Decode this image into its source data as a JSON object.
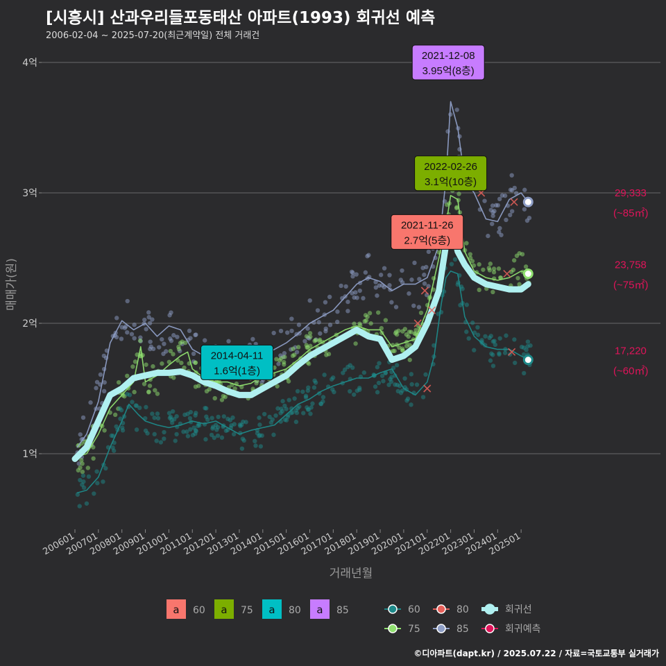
{
  "title": "[시흥시] 산과우리들포동태산 아파트(1993) 회귀선 예측",
  "subtitle": "2006-02-04 ~ 2025-07-20(최근계약일) 전체 거래건",
  "caption": "©디아파트(dapt.kr) / 2025.07.22 / 자료=국토교통부 실거래가",
  "colors": {
    "s60": "#1e8a8a",
    "s75": "#90e070",
    "s80": "#e8605a",
    "s85": "#8e9ec6",
    "regression": "#b0f0f0",
    "forecast": "#e0145a",
    "box60": "#f8766d",
    "box75": "#7cae00",
    "box80": "#00bfc4",
    "box85": "#c77cff"
  },
  "chart_data": {
    "type": "line",
    "title": "[시흥시] 산과우리들포동태산 아파트(1993) 회귀선 예측",
    "xlabel": "거래년월",
    "ylabel": "매매가(원)",
    "xlim": [
      2006.0,
      2026.0
    ],
    "ylim": [
      0.55,
      4.35
    ],
    "x_ticks": [
      {
        "x": 2006.0,
        "label": "200601"
      },
      {
        "x": 2007.0,
        "label": "200701"
      },
      {
        "x": 2008.0,
        "label": "200801"
      },
      {
        "x": 2009.0,
        "label": "200901"
      },
      {
        "x": 2010.0,
        "label": "201001"
      },
      {
        "x": 2011.0,
        "label": "201101"
      },
      {
        "x": 2012.0,
        "label": "201201"
      },
      {
        "x": 2013.0,
        "label": "201301"
      },
      {
        "x": 2014.0,
        "label": "201401"
      },
      {
        "x": 2015.0,
        "label": "201501"
      },
      {
        "x": 2016.0,
        "label": "201601"
      },
      {
        "x": 2017.0,
        "label": "201701"
      },
      {
        "x": 2018.0,
        "label": "201801"
      },
      {
        "x": 2019.0,
        "label": "201901"
      },
      {
        "x": 2020.0,
        "label": "202001"
      },
      {
        "x": 2021.0,
        "label": "202101"
      },
      {
        "x": 2022.0,
        "label": "202201"
      },
      {
        "x": 2023.0,
        "label": "202301"
      },
      {
        "x": 2024.0,
        "label": "202401"
      },
      {
        "x": 2025.0,
        "label": "202501"
      }
    ],
    "y_ticks": [
      {
        "y": 1,
        "label": "1억"
      },
      {
        "y": 2,
        "label": "2억"
      },
      {
        "y": 3,
        "label": "3억"
      },
      {
        "y": 4,
        "label": "4억"
      }
    ],
    "series": [
      {
        "name": "60",
        "color_key": "s60",
        "points": [
          [
            2006.1,
            0.7
          ],
          [
            2006.5,
            0.72
          ],
          [
            2007.0,
            0.82
          ],
          [
            2007.5,
            1.05
          ],
          [
            2008.0,
            1.25
          ],
          [
            2008.3,
            1.38
          ],
          [
            2008.7,
            1.3
          ],
          [
            2009.0,
            1.25
          ],
          [
            2009.5,
            1.22
          ],
          [
            2010.0,
            1.2
          ],
          [
            2010.5,
            1.22
          ],
          [
            2011.0,
            1.25
          ],
          [
            2011.5,
            1.23
          ],
          [
            2012.0,
            1.25
          ],
          [
            2012.5,
            1.2
          ],
          [
            2013.0,
            1.15
          ],
          [
            2013.5,
            1.18
          ],
          [
            2014.0,
            1.2
          ],
          [
            2014.5,
            1.22
          ],
          [
            2015.0,
            1.3
          ],
          [
            2015.5,
            1.38
          ],
          [
            2016.0,
            1.42
          ],
          [
            2016.5,
            1.48
          ],
          [
            2017.0,
            1.52
          ],
          [
            2017.5,
            1.55
          ],
          [
            2018.0,
            1.58
          ],
          [
            2018.5,
            1.58
          ],
          [
            2019.0,
            1.62
          ],
          [
            2019.5,
            1.65
          ],
          [
            2020.0,
            1.5
          ],
          [
            2020.5,
            1.45
          ],
          [
            2021.0,
            1.55
          ],
          [
            2021.3,
            1.75
          ],
          [
            2021.6,
            2.15
          ],
          [
            2021.8,
            2.35
          ],
          [
            2022.0,
            2.4
          ],
          [
            2022.3,
            2.38
          ],
          [
            2022.6,
            2.05
          ],
          [
            2023.0,
            1.9
          ],
          [
            2023.5,
            1.82
          ],
          [
            2024.0,
            1.8
          ],
          [
            2024.5,
            1.8
          ],
          [
            2025.0,
            1.75
          ],
          [
            2025.3,
            1.72
          ]
        ]
      },
      {
        "name": "75",
        "color_key": "s75",
        "points": [
          [
            2006.1,
            0.98
          ],
          [
            2006.5,
            1.0
          ],
          [
            2007.0,
            1.15
          ],
          [
            2007.5,
            1.35
          ],
          [
            2008.0,
            1.45
          ],
          [
            2008.5,
            1.55
          ],
          [
            2008.8,
            1.82
          ],
          [
            2009.0,
            1.55
          ],
          [
            2009.5,
            1.6
          ],
          [
            2010.0,
            1.68
          ],
          [
            2010.5,
            1.75
          ],
          [
            2010.8,
            1.78
          ],
          [
            2011.0,
            1.65
          ],
          [
            2011.5,
            1.58
          ],
          [
            2012.0,
            1.55
          ],
          [
            2012.5,
            1.55
          ],
          [
            2013.0,
            1.52
          ],
          [
            2013.5,
            1.54
          ],
          [
            2014.0,
            1.6
          ],
          [
            2014.5,
            1.62
          ],
          [
            2015.0,
            1.65
          ],
          [
            2015.5,
            1.72
          ],
          [
            2016.0,
            1.8
          ],
          [
            2016.5,
            1.85
          ],
          [
            2017.0,
            1.9
          ],
          [
            2017.5,
            1.95
          ],
          [
            2018.0,
            1.98
          ],
          [
            2018.5,
            1.95
          ],
          [
            2019.0,
            1.95
          ],
          [
            2019.5,
            1.82
          ],
          [
            2020.0,
            1.85
          ],
          [
            2020.5,
            1.88
          ],
          [
            2021.0,
            2.1
          ],
          [
            2021.5,
            2.5
          ],
          [
            2021.8,
            2.75
          ],
          [
            2022.0,
            2.98
          ],
          [
            2022.3,
            2.95
          ],
          [
            2022.6,
            2.55
          ],
          [
            2023.0,
            2.4
          ],
          [
            2023.5,
            2.35
          ],
          [
            2024.0,
            2.33
          ],
          [
            2024.5,
            2.35
          ],
          [
            2025.0,
            2.4
          ],
          [
            2025.3,
            2.38
          ]
        ]
      },
      {
        "name": "85",
        "color_key": "s85",
        "points": [
          [
            2006.1,
            1.05
          ],
          [
            2006.5,
            1.15
          ],
          [
            2007.0,
            1.4
          ],
          [
            2007.5,
            1.85
          ],
          [
            2008.0,
            2.02
          ],
          [
            2008.5,
            1.95
          ],
          [
            2009.0,
            2.0
          ],
          [
            2009.5,
            1.9
          ],
          [
            2010.0,
            1.98
          ],
          [
            2010.5,
            1.95
          ],
          [
            2011.0,
            1.8
          ],
          [
            2011.5,
            1.75
          ],
          [
            2012.0,
            1.72
          ],
          [
            2012.5,
            1.7
          ],
          [
            2013.0,
            1.68
          ],
          [
            2013.5,
            1.72
          ],
          [
            2014.0,
            1.75
          ],
          [
            2014.5,
            1.8
          ],
          [
            2015.0,
            1.85
          ],
          [
            2015.5,
            1.92
          ],
          [
            2016.0,
            2.0
          ],
          [
            2016.5,
            2.05
          ],
          [
            2017.0,
            2.1
          ],
          [
            2017.5,
            2.2
          ],
          [
            2018.0,
            2.3
          ],
          [
            2018.5,
            2.35
          ],
          [
            2019.0,
            2.32
          ],
          [
            2019.5,
            2.25
          ],
          [
            2020.0,
            2.3
          ],
          [
            2020.5,
            2.3
          ],
          [
            2021.0,
            2.35
          ],
          [
            2021.5,
            2.6
          ],
          [
            2021.8,
            3.1
          ],
          [
            2022.0,
            3.7
          ],
          [
            2022.3,
            3.5
          ],
          [
            2022.6,
            3.1
          ],
          [
            2023.0,
            3.0
          ],
          [
            2023.5,
            2.8
          ],
          [
            2024.0,
            2.78
          ],
          [
            2024.5,
            2.95
          ],
          [
            2025.0,
            3.0
          ],
          [
            2025.3,
            2.93
          ]
        ]
      },
      {
        "name": "회귀선",
        "color_key": "regression",
        "points": [
          [
            2006.0,
            0.96
          ],
          [
            2006.5,
            1.05
          ],
          [
            2007.0,
            1.25
          ],
          [
            2007.5,
            1.45
          ],
          [
            2008.0,
            1.5
          ],
          [
            2008.5,
            1.58
          ],
          [
            2009.0,
            1.6
          ],
          [
            2009.5,
            1.62
          ],
          [
            2010.0,
            1.62
          ],
          [
            2010.5,
            1.63
          ],
          [
            2011.0,
            1.6
          ],
          [
            2011.5,
            1.55
          ],
          [
            2012.0,
            1.52
          ],
          [
            2012.5,
            1.48
          ],
          [
            2013.0,
            1.45
          ],
          [
            2013.5,
            1.45
          ],
          [
            2014.0,
            1.5
          ],
          [
            2014.5,
            1.55
          ],
          [
            2015.0,
            1.6
          ],
          [
            2015.5,
            1.68
          ],
          [
            2016.0,
            1.75
          ],
          [
            2016.5,
            1.8
          ],
          [
            2017.0,
            1.85
          ],
          [
            2017.5,
            1.9
          ],
          [
            2018.0,
            1.95
          ],
          [
            2018.5,
            1.9
          ],
          [
            2019.0,
            1.88
          ],
          [
            2019.5,
            1.72
          ],
          [
            2020.0,
            1.75
          ],
          [
            2020.5,
            1.82
          ],
          [
            2021.0,
            2.0
          ],
          [
            2021.5,
            2.25
          ],
          [
            2021.8,
            2.6
          ],
          [
            2022.0,
            2.78
          ],
          [
            2022.3,
            2.55
          ],
          [
            2022.6,
            2.45
          ],
          [
            2023.0,
            2.35
          ],
          [
            2023.5,
            2.3
          ],
          [
            2024.0,
            2.28
          ],
          [
            2024.5,
            2.26
          ],
          [
            2025.0,
            2.26
          ],
          [
            2025.3,
            2.3
          ]
        ]
      }
    ],
    "forecast_points": [
      [
        2020.6,
        2.0
      ],
      [
        2020.9,
        2.25
      ],
      [
        2021.0,
        1.5
      ],
      [
        2021.2,
        2.1
      ],
      [
        2023.3,
        3.0
      ],
      [
        2024.4,
        2.38
      ],
      [
        2024.6,
        1.78
      ],
      [
        2024.7,
        2.93
      ]
    ],
    "annotations": [
      {
        "date": "2021-12-08",
        "value": "3.95억(8층)",
        "x": 2021.9,
        "y": 4.0,
        "color_key": "box85"
      },
      {
        "date": "2022-02-26",
        "value": "3.1억(10층)",
        "x": 2022.0,
        "y": 3.15,
        "color_key": "box75"
      },
      {
        "date": "2021-11-26",
        "value": "2.7억(5층)",
        "x": 2021.0,
        "y": 2.7,
        "color_key": "box60"
      },
      {
        "date": "2014-04-11",
        "value": "1.6억(1층)",
        "x": 2012.9,
        "y": 1.7,
        "color_key": "box80"
      }
    ],
    "end_labels": [
      {
        "price": "29,333",
        "area": "(~85㎡)",
        "y": 2.93,
        "color_key": "s85"
      },
      {
        "price": "23,758",
        "area": "(~75㎡)",
        "y": 2.38,
        "color_key": "s75"
      },
      {
        "price": "17,220",
        "area": "(~60㎡)",
        "y": 1.72,
        "color_key": "s60"
      }
    ],
    "legend_boxes": [
      {
        "glyph": "a",
        "label": "60",
        "color_key": "box60"
      },
      {
        "glyph": "a",
        "label": "75",
        "color_key": "box75"
      },
      {
        "glyph": "a",
        "label": "80",
        "color_key": "box80"
      },
      {
        "glyph": "a",
        "label": "85",
        "color_key": "box85"
      }
    ],
    "legend_lines": [
      {
        "label": "60",
        "color_key": "s60"
      },
      {
        "label": "80",
        "color_key": "s80"
      },
      {
        "label": "회귀선",
        "color_key": "regression"
      },
      {
        "label": "75",
        "color_key": "s75"
      },
      {
        "label": "85",
        "color_key": "s85"
      },
      {
        "label": "회귀예측",
        "color_key": "forecast"
      }
    ]
  }
}
